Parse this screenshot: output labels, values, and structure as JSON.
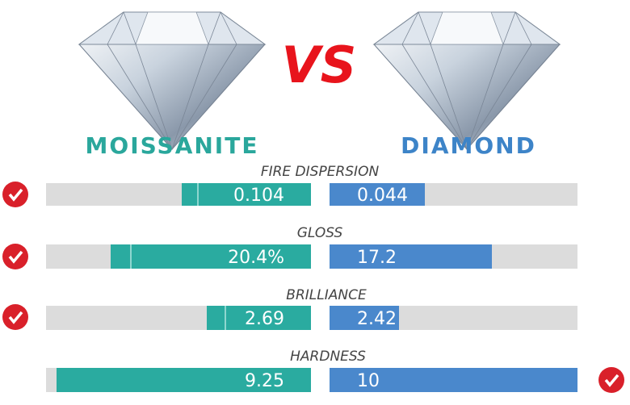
{
  "header": {
    "left": "MOISSANITE",
    "vs": "VS",
    "right": "DIAMOND"
  },
  "rows": [
    {
      "label": "FIRE  DISPERSION",
      "moissanite": "0.104",
      "diamond": "0.044"
    },
    {
      "label": "GLOSS",
      "moissanite": "20.4%",
      "diamond": "17.2"
    },
    {
      "label": "BRILLIANCE",
      "moissanite": "2.69",
      "diamond": "2.42"
    },
    {
      "label": "HARDNESS",
      "moissanite": "9.25",
      "diamond": "10"
    }
  ]
}
